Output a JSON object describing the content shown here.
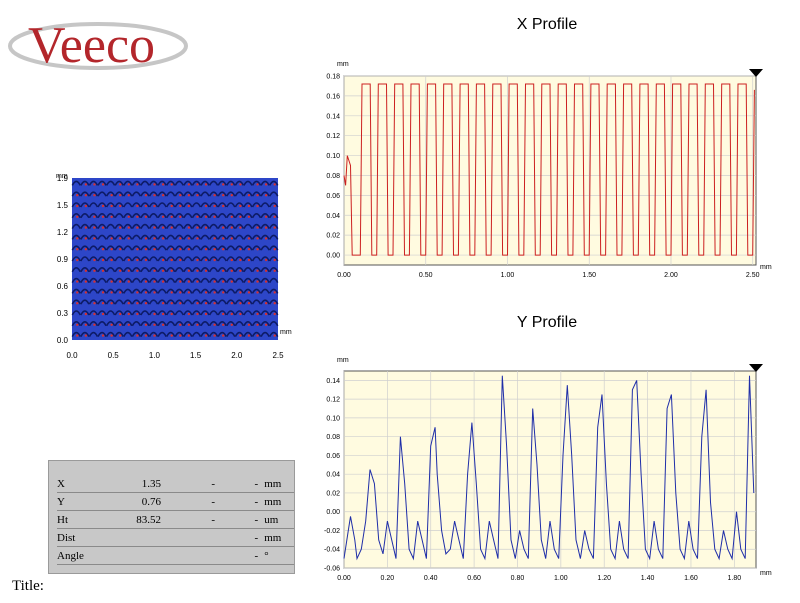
{
  "brand": {
    "logo_text": "Veeco",
    "color": "#b3262b"
  },
  "map": {
    "unit": "mm",
    "yticks": [
      "1.9",
      "1.5",
      "1.2",
      "0.9",
      "0.6",
      "0.3",
      "0.0"
    ],
    "xticks": [
      "0.0",
      "0.5",
      "1.0",
      "1.5",
      "2.0",
      "2.5"
    ],
    "x_unit": "mm",
    "colors": {
      "background": "#2d46c8",
      "feature": "#0d1b66",
      "highlight": "#d83030"
    }
  },
  "readout": {
    "rows": [
      {
        "label": "X",
        "v1": "1.35",
        "v2": "-",
        "v3": "-",
        "unit": "mm"
      },
      {
        "label": "Y",
        "v1": "0.76",
        "v2": "-",
        "v3": "-",
        "unit": "mm"
      },
      {
        "label": "Ht",
        "v1": "83.52",
        "v2": "-",
        "v3": "-",
        "unit": "um"
      },
      {
        "label": "Dist",
        "v1": "",
        "v2": "",
        "v3": "-",
        "unit": "mm"
      },
      {
        "label": "Angle",
        "v1": "",
        "v2": "",
        "v3": "-",
        "unit": "°"
      }
    ]
  },
  "title_label": "Title:",
  "chart_data": [
    {
      "type": "line",
      "title": "X Profile",
      "x_unit": "mm",
      "y_unit": "mm",
      "xlim": [
        0,
        2.52
      ],
      "ylim": [
        -0.01,
        0.18
      ],
      "xticks": [
        0,
        0.5,
        1.0,
        1.5,
        2.0,
        2.5
      ],
      "xtick_labels": [
        "0.00",
        "0.50",
        "1.00",
        "1.50",
        "2.00",
        "2.50"
      ],
      "yticks": [
        0,
        0.02,
        0.04,
        0.06,
        0.08,
        0.1,
        0.12,
        0.14,
        0.16,
        0.18
      ],
      "ytick_labels": [
        "0.00",
        "0.02",
        "0.04",
        "0.06",
        "0.08",
        "0.10",
        "0.12",
        "0.14",
        "0.16",
        "0.18"
      ],
      "grid": true,
      "line_color": "#cc2020",
      "background": "#fffbe0",
      "series": [
        {
          "x": [
            0.0,
            0.01,
            0.02,
            0.04,
            0.05,
            0.1,
            0.11,
            0.16,
            0.17,
            0.2,
            0.21,
            0.26,
            0.27,
            0.3,
            0.31,
            0.36,
            0.37,
            0.4,
            0.41,
            0.46,
            0.47,
            0.5,
            0.51,
            0.56,
            0.57,
            0.6,
            0.61,
            0.66,
            0.67,
            0.7,
            0.71,
            0.76,
            0.77,
            0.8,
            0.81,
            0.86,
            0.87,
            0.9,
            0.91,
            0.96,
            0.97,
            1.0,
            1.01,
            1.06,
            1.07,
            1.1,
            1.11,
            1.16,
            1.17,
            1.2,
            1.21,
            1.26,
            1.27,
            1.3,
            1.31,
            1.36,
            1.37,
            1.4,
            1.41,
            1.46,
            1.47,
            1.5,
            1.51,
            1.56,
            1.57,
            1.6,
            1.61,
            1.66,
            1.67,
            1.7,
            1.71,
            1.76,
            1.77,
            1.8,
            1.81,
            1.86,
            1.87,
            1.9,
            1.91,
            1.96,
            1.97,
            2.0,
            2.01,
            2.06,
            2.07,
            2.1,
            2.11,
            2.16,
            2.17,
            2.2,
            2.21,
            2.26,
            2.27,
            2.3,
            2.31,
            2.36,
            2.37,
            2.4,
            2.41,
            2.46,
            2.47,
            2.5,
            2.51
          ],
          "y": [
            0.08,
            0.07,
            0.1,
            0.09,
            0.0,
            0.0,
            0.172,
            0.172,
            0.0,
            0.0,
            0.172,
            0.172,
            0.0,
            0.0,
            0.172,
            0.172,
            0.0,
            0.0,
            0.172,
            0.172,
            0.0,
            0.0,
            0.172,
            0.172,
            0.0,
            0.0,
            0.172,
            0.172,
            0.0,
            0.0,
            0.172,
            0.172,
            0.0,
            0.0,
            0.172,
            0.172,
            0.0,
            0.0,
            0.172,
            0.172,
            0.0,
            0.0,
            0.172,
            0.172,
            0.0,
            0.0,
            0.172,
            0.172,
            0.0,
            0.0,
            0.172,
            0.172,
            0.0,
            0.0,
            0.172,
            0.172,
            0.0,
            0.0,
            0.172,
            0.172,
            0.0,
            0.0,
            0.172,
            0.172,
            0.0,
            0.0,
            0.172,
            0.172,
            0.0,
            0.0,
            0.172,
            0.172,
            0.0,
            0.0,
            0.172,
            0.172,
            0.0,
            0.0,
            0.172,
            0.172,
            0.0,
            0.0,
            0.172,
            0.172,
            0.0,
            0.0,
            0.172,
            0.172,
            0.0,
            0.0,
            0.172,
            0.172,
            0.0,
            0.0,
            0.172,
            0.172,
            0.0,
            0.0,
            0.172,
            0.172,
            0.0,
            0.0,
            0.166
          ]
        }
      ]
    },
    {
      "type": "line",
      "title": "Y Profile",
      "x_unit": "mm",
      "y_unit": "mm",
      "xlim": [
        0,
        1.9
      ],
      "ylim": [
        -0.06,
        0.15
      ],
      "xticks": [
        0,
        0.2,
        0.4,
        0.6,
        0.8,
        1.0,
        1.2,
        1.4,
        1.6,
        1.8
      ],
      "xtick_labels": [
        "0.00",
        "0.20",
        "0.40",
        "0.60",
        "0.80",
        "1.00",
        "1.20",
        "1.40",
        "1.60",
        "1.80"
      ],
      "yticks": [
        -0.06,
        -0.04,
        -0.02,
        0,
        0.02,
        0.04,
        0.06,
        0.08,
        0.1,
        0.12,
        0.14
      ],
      "ytick_labels": [
        "-0.06",
        "-0.04",
        "-0.02",
        "0.00",
        "0.02",
        "0.04",
        "0.06",
        "0.08",
        "0.10",
        "0.12",
        "0.14"
      ],
      "grid": true,
      "line_color": "#1f2ea8",
      "background": "#fffbe0",
      "series": [
        {
          "x": [
            0.0,
            0.02,
            0.03,
            0.05,
            0.06,
            0.08,
            0.1,
            0.12,
            0.14,
            0.16,
            0.18,
            0.2,
            0.22,
            0.24,
            0.26,
            0.28,
            0.3,
            0.32,
            0.34,
            0.36,
            0.38,
            0.4,
            0.42,
            0.43,
            0.45,
            0.47,
            0.49,
            0.51,
            0.53,
            0.55,
            0.57,
            0.59,
            0.61,
            0.63,
            0.65,
            0.67,
            0.69,
            0.71,
            0.73,
            0.75,
            0.77,
            0.79,
            0.81,
            0.83,
            0.85,
            0.87,
            0.89,
            0.91,
            0.93,
            0.95,
            0.97,
            0.99,
            1.01,
            1.03,
            1.05,
            1.07,
            1.09,
            1.11,
            1.13,
            1.15,
            1.17,
            1.19,
            1.21,
            1.23,
            1.25,
            1.27,
            1.29,
            1.31,
            1.33,
            1.35,
            1.37,
            1.39,
            1.41,
            1.43,
            1.45,
            1.47,
            1.49,
            1.51,
            1.53,
            1.55,
            1.57,
            1.59,
            1.61,
            1.63,
            1.65,
            1.67,
            1.69,
            1.71,
            1.73,
            1.75,
            1.77,
            1.79,
            1.81,
            1.83,
            1.85,
            1.87,
            1.89
          ],
          "y": [
            -0.05,
            -0.02,
            -0.005,
            -0.03,
            -0.05,
            -0.04,
            -0.01,
            0.045,
            0.03,
            -0.03,
            -0.045,
            -0.01,
            -0.03,
            -0.05,
            0.08,
            0.03,
            -0.04,
            -0.05,
            -0.01,
            -0.03,
            -0.05,
            0.07,
            0.09,
            0.04,
            -0.02,
            -0.045,
            -0.04,
            -0.01,
            -0.03,
            -0.05,
            0.04,
            0.095,
            0.03,
            -0.04,
            -0.05,
            -0.01,
            -0.03,
            -0.05,
            0.145,
            0.07,
            -0.03,
            -0.05,
            -0.02,
            -0.04,
            -0.05,
            0.11,
            0.05,
            -0.03,
            -0.05,
            -0.01,
            -0.04,
            -0.05,
            0.06,
            0.135,
            0.06,
            -0.03,
            -0.05,
            -0.02,
            -0.04,
            -0.05,
            0.09,
            0.125,
            0.03,
            -0.04,
            -0.05,
            -0.01,
            -0.04,
            -0.05,
            0.13,
            0.14,
            0.04,
            -0.04,
            -0.05,
            -0.01,
            -0.04,
            -0.05,
            0.11,
            0.125,
            0.02,
            -0.04,
            -0.05,
            -0.01,
            -0.04,
            -0.05,
            0.08,
            0.13,
            0.01,
            -0.04,
            -0.05,
            -0.02,
            -0.04,
            -0.05,
            0.0,
            -0.04,
            -0.05,
            0.145,
            0.02
          ]
        }
      ]
    }
  ]
}
